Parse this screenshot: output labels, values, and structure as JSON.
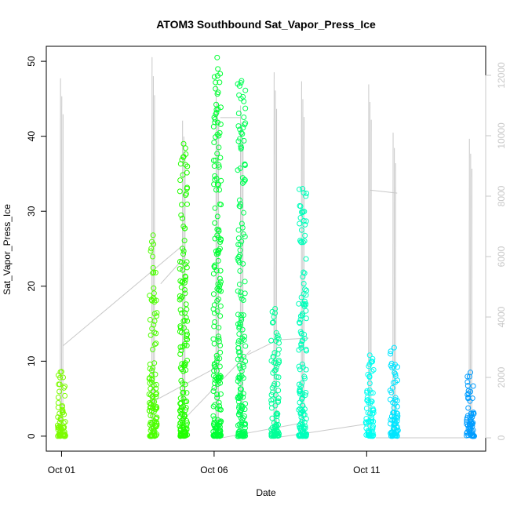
{
  "chart_data": {
    "type": "scatter",
    "title": "ATOM3 Southbound Sat_Vapor_Press_Ice",
    "xlabel": "Date",
    "ylabel": "Sat_Vapor_Press_Ice",
    "x_ticks": [
      "Oct 01",
      "Oct 06",
      "Oct 11"
    ],
    "x_tick_days": [
      1,
      6,
      11
    ],
    "xlim_days": [
      0.5,
      14.9
    ],
    "ylim": [
      -2,
      52
    ],
    "y_ticks": [
      0,
      10,
      20,
      30,
      40,
      50
    ],
    "y2_ticks": [
      0,
      2000,
      4000,
      6000,
      8000,
      10000,
      12000
    ],
    "y2lim": [
      -440,
      12960
    ],
    "y2_axis_color": "#c8c8c8",
    "altitude_line_color": "#c8c8c8",
    "grid": false,
    "legend": "none",
    "series": [
      {
        "day": 1.0,
        "min": 0,
        "max": 8.6,
        "color": "#7CFC00",
        "alt_max": 11900
      },
      {
        "day": 4.0,
        "min": 0,
        "max": 26.8,
        "color": "#4CFF00",
        "alt_max": 12600
      },
      {
        "day": 5.0,
        "min": 0,
        "max": 39.0,
        "color": "#22FF00",
        "alt_max": 10500
      },
      {
        "day": 6.1,
        "min": 0,
        "max": 50.5,
        "color": "#00FF33",
        "alt_max": 11700
      },
      {
        "day": 6.9,
        "min": 0,
        "max": 47.4,
        "color": "#00FF55",
        "alt_max": 11000
      },
      {
        "day": 8.0,
        "min": 0,
        "max": 17.0,
        "color": "#00FF99",
        "alt_max": 12100
      },
      {
        "day": 8.9,
        "min": 0,
        "max": 33.0,
        "color": "#00FFBB",
        "alt_max": 11800
      },
      {
        "day": 11.1,
        "min": 0,
        "max": 10.8,
        "color": "#00FFF2",
        "alt_max": 11700
      },
      {
        "day": 11.9,
        "min": 0,
        "max": 11.8,
        "color": "#00E5FF",
        "alt_max": 10100
      },
      {
        "day": 14.4,
        "min": 0,
        "max": 8.5,
        "color": "#009DFF",
        "alt_max": 9900
      }
    ],
    "altitude_connectors": [
      [
        1.05,
        3050,
        4.95,
        6350
      ],
      [
        4.25,
        5100,
        5.05,
        6000
      ],
      [
        4.0,
        1200,
        6.2,
        2400
      ],
      [
        5.0,
        600,
        7.2,
        2900
      ],
      [
        6.25,
        0,
        8.8,
        480
      ],
      [
        6.2,
        10600,
        6.9,
        10600
      ],
      [
        7.1,
        2750,
        8.1,
        3250
      ],
      [
        8.2,
        3250,
        9.1,
        3300
      ],
      [
        8.0,
        0,
        11.0,
        460
      ],
      [
        11.1,
        8200,
        12.0,
        8100
      ],
      [
        11.3,
        0,
        14.4,
        0
      ]
    ]
  }
}
